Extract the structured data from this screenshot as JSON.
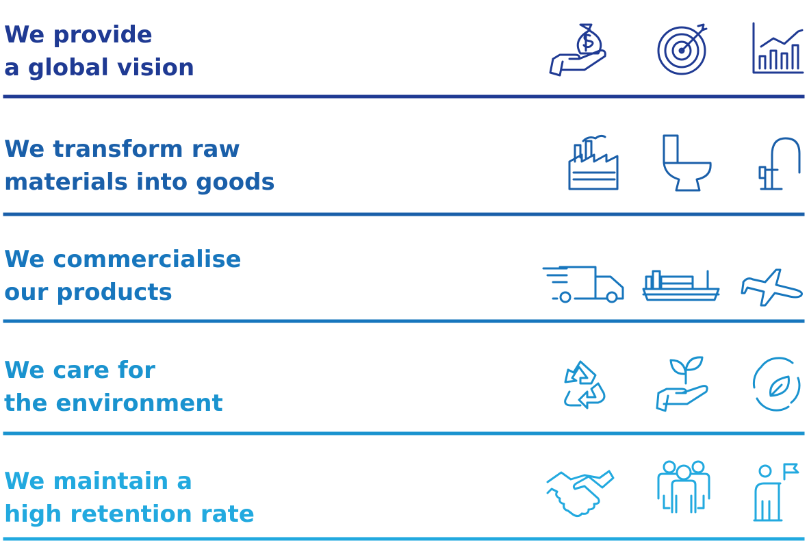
{
  "rows": [
    {
      "lines": [
        "We provide",
        "a global vision"
      ]
    },
    {
      "lines": [
        "We transform raw",
        "materials into goods"
      ]
    },
    {
      "lines": [
        "We commercialise",
        "our products"
      ]
    },
    {
      "lines": [
        "We care for",
        "the environment"
      ]
    },
    {
      "lines": [
        "We maintain a",
        "high retention rate"
      ]
    }
  ]
}
